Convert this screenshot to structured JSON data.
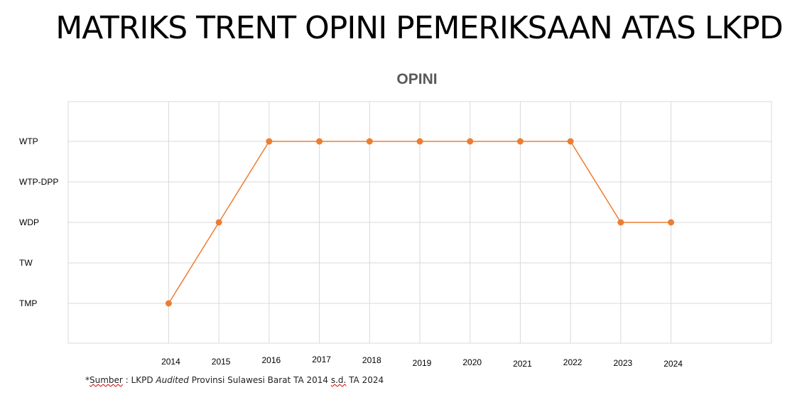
{
  "page": {
    "title": "MATRIKS TRENT OPINI PEMERIKSAAN ATAS LKPD",
    "source": {
      "prefix": "*",
      "word_sumber": "Sumber",
      "sep": " : LKPD ",
      "audited": "Audited",
      "rest_1": " Provinsi Sulawesi Barat TA 2014 ",
      "sd": "s.d.",
      "rest_2": " TA 2024"
    }
  },
  "chart_data": {
    "type": "line",
    "title": "OPINI",
    "xlabel": "",
    "ylabel": "",
    "y_categories": [
      "TMP",
      "TW",
      "WDP",
      "WTP-DPP",
      "WTP"
    ],
    "categories": [
      "2014",
      "2015",
      "2016",
      "2017",
      "2018",
      "2019",
      "2020",
      "2021",
      "2022",
      "2023",
      "2024"
    ],
    "series": [
      {
        "values": [
          "TMP",
          "WDP",
          "WTP",
          "WTP",
          "WTP",
          "WTP",
          "WTP",
          "WTP",
          "WTP",
          "WDP",
          "WDP"
        ]
      }
    ],
    "grid": true,
    "legend": "none",
    "colors": {
      "line": "#ed7d31",
      "marker": "#ed7d31",
      "grid": "#d9d9d9",
      "title": "#595959",
      "labels": "#000000"
    }
  }
}
